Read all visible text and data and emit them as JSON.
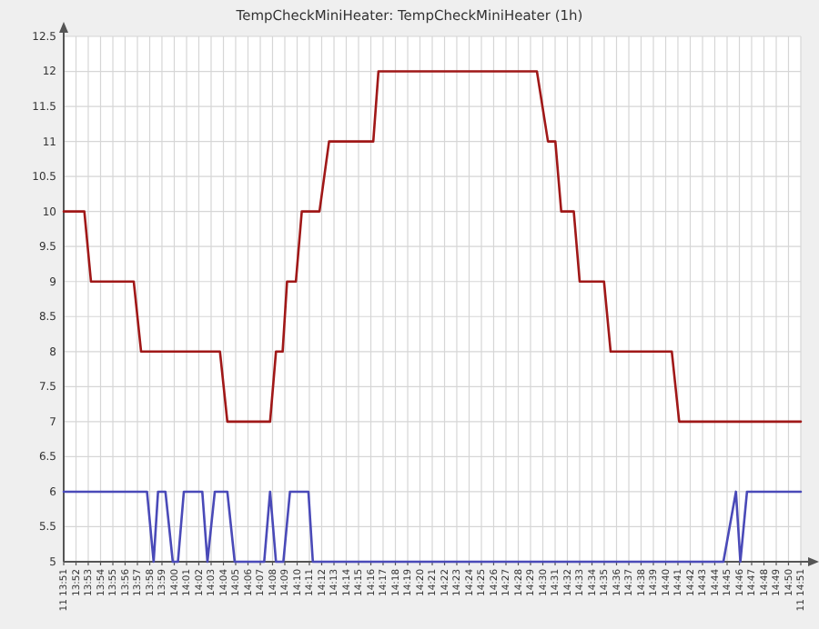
{
  "chart_data": {
    "type": "line",
    "title": "TempCheckMiniHeater: TempCheckMiniHeater  (1h)",
    "series": [
      {
        "color": "#a01818",
        "x": [
          13.85,
          13.878,
          13.887,
          13.945,
          13.955,
          14.062,
          14.072,
          14.13,
          14.138,
          14.147,
          14.153,
          14.165,
          14.173,
          14.197,
          14.21,
          14.27,
          14.277,
          14.492,
          14.507,
          14.517,
          14.525,
          14.542,
          14.55,
          14.583,
          14.592,
          14.675,
          14.685,
          14.85
        ],
        "values": [
          10,
          10,
          9,
          9,
          8,
          8,
          7,
          7,
          8,
          8,
          9,
          9,
          10,
          10,
          11,
          11,
          12,
          12,
          11,
          11,
          10,
          10,
          9,
          9,
          8,
          8,
          7,
          7
        ]
      },
      {
        "color": "#4a4ab8",
        "x": [
          13.85,
          13.963,
          13.972,
          13.978,
          13.988,
          13.998,
          14.005,
          14.013,
          14.038,
          14.045,
          14.055,
          14.072,
          14.082,
          14.122,
          14.13,
          14.138,
          14.148,
          14.157,
          14.182,
          14.188,
          14.745,
          14.762,
          14.768,
          14.777,
          14.85
        ],
        "values": [
          6,
          6,
          5,
          6,
          6,
          5,
          5,
          6,
          6,
          5,
          6,
          6,
          5,
          5,
          6,
          5,
          5,
          6,
          6,
          5,
          5,
          6,
          5,
          6,
          6
        ]
      }
    ],
    "xlim": [
      13.85,
      14.85
    ],
    "xticks": [
      {
        "value": 13.85,
        "label": "11 13:51"
      },
      {
        "value": 13.8667,
        "label": "13:52"
      },
      {
        "value": 13.8833,
        "label": "13:53"
      },
      {
        "value": 13.9,
        "label": "13:54"
      },
      {
        "value": 13.9167,
        "label": "13:55"
      },
      {
        "value": 13.9333,
        "label": "13:56"
      },
      {
        "value": 13.95,
        "label": "13:57"
      },
      {
        "value": 13.9667,
        "label": "13:58"
      },
      {
        "value": 13.9833,
        "label": "13:59"
      },
      {
        "value": 14.0,
        "label": "14:00"
      },
      {
        "value": 14.0167,
        "label": "14:01"
      },
      {
        "value": 14.0333,
        "label": "14:02"
      },
      {
        "value": 14.05,
        "label": "14:03"
      },
      {
        "value": 14.0667,
        "label": "14:04"
      },
      {
        "value": 14.0833,
        "label": "14:05"
      },
      {
        "value": 14.1,
        "label": "14:06"
      },
      {
        "value": 14.1167,
        "label": "14:07"
      },
      {
        "value": 14.1333,
        "label": "14:08"
      },
      {
        "value": 14.15,
        "label": "14:09"
      },
      {
        "value": 14.1667,
        "label": "14:10"
      },
      {
        "value": 14.1833,
        "label": "14:11"
      },
      {
        "value": 14.2,
        "label": "14:12"
      },
      {
        "value": 14.2167,
        "label": "14:13"
      },
      {
        "value": 14.2333,
        "label": "14:14"
      },
      {
        "value": 14.25,
        "label": "14:15"
      },
      {
        "value": 14.2667,
        "label": "14:16"
      },
      {
        "value": 14.2833,
        "label": "14:17"
      },
      {
        "value": 14.3,
        "label": "14:18"
      },
      {
        "value": 14.3167,
        "label": "14:19"
      },
      {
        "value": 14.3333,
        "label": "14:20"
      },
      {
        "value": 14.35,
        "label": "14:21"
      },
      {
        "value": 14.3667,
        "label": "14:22"
      },
      {
        "value": 14.3833,
        "label": "14:23"
      },
      {
        "value": 14.4,
        "label": "14:24"
      },
      {
        "value": 14.4167,
        "label": "14:25"
      },
      {
        "value": 14.4333,
        "label": "14:26"
      },
      {
        "value": 14.45,
        "label": "14:27"
      },
      {
        "value": 14.4667,
        "label": "14:28"
      },
      {
        "value": 14.4833,
        "label": "14:29"
      },
      {
        "value": 14.5,
        "label": "14:30"
      },
      {
        "value": 14.5167,
        "label": "14:31"
      },
      {
        "value": 14.5333,
        "label": "14:32"
      },
      {
        "value": 14.55,
        "label": "14:33"
      },
      {
        "value": 14.5667,
        "label": "14:34"
      },
      {
        "value": 14.5833,
        "label": "14:35"
      },
      {
        "value": 14.6,
        "label": "14:36"
      },
      {
        "value": 14.6167,
        "label": "14:37"
      },
      {
        "value": 14.6333,
        "label": "14:38"
      },
      {
        "value": 14.65,
        "label": "14:39"
      },
      {
        "value": 14.6667,
        "label": "14:40"
      },
      {
        "value": 14.6833,
        "label": "14:41"
      },
      {
        "value": 14.7,
        "label": "14:42"
      },
      {
        "value": 14.7167,
        "label": "14:43"
      },
      {
        "value": 14.7333,
        "label": "14:44"
      },
      {
        "value": 14.75,
        "label": "14:45"
      },
      {
        "value": 14.7667,
        "label": "14:46"
      },
      {
        "value": 14.7833,
        "label": "14:47"
      },
      {
        "value": 14.8,
        "label": "14:48"
      },
      {
        "value": 14.8167,
        "label": "14:49"
      },
      {
        "value": 14.8333,
        "label": "14:50"
      },
      {
        "value": 14.85,
        "label": "11 14:51"
      }
    ],
    "ylim": [
      5,
      12.5
    ],
    "yticks": [
      5,
      5.5,
      6,
      6.5,
      7,
      7.5,
      8,
      8.5,
      9,
      9.5,
      10,
      10.5,
      11,
      11.5,
      12,
      12.5
    ],
    "grid": true,
    "marker": "none",
    "line_style": "solid"
  }
}
